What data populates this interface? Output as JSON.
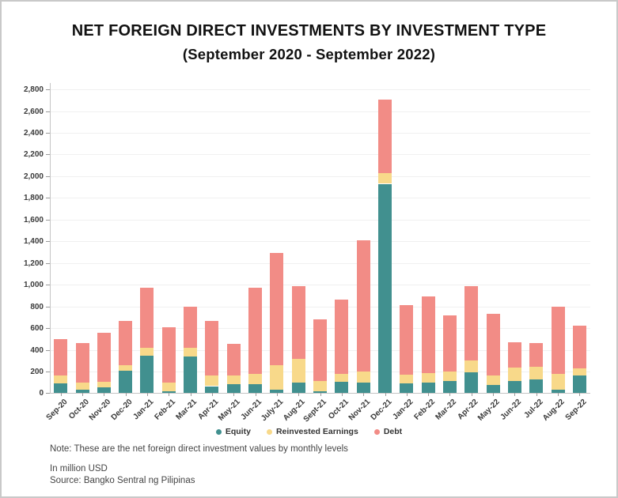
{
  "frame": {
    "title_line1": "NET FOREIGN DIRECT INVESTMENTS BY INVESTMENT TYPE",
    "title_line2": "(September 2020 - September 2022)"
  },
  "chart_data": {
    "type": "bar",
    "stacked": true,
    "title": "NET FOREIGN DIRECT INVESTMENTS BY INVESTMENT TYPE (September 2020 - September 2022)",
    "xlabel": "",
    "ylabel": "",
    "units": "million USD",
    "ylim": [
      0,
      2800
    ],
    "ytick_step": 200,
    "grid": true,
    "legend_position": "bottom",
    "categories": [
      "Sep-20",
      "Oct-20",
      "Nov-20",
      "Dec-20",
      "Jan-21",
      "Feb-21",
      "Mar-21",
      "Apr-21",
      "May-21",
      "Jun-21",
      "July-21",
      "Aug-21",
      "Sept-21",
      "Oct-21",
      "Nov-21",
      "Dec-21",
      "Jan-22",
      "Feb-22",
      "Mar-22",
      "Apr-22",
      "May-22",
      "Jun-22",
      "Jul-22",
      "Aug-22",
      "Sep-22"
    ],
    "series": [
      {
        "name": "Equity",
        "color": "#41908F",
        "values": [
          90,
          35,
          55,
          210,
          345,
          15,
          340,
          65,
          80,
          80,
          30,
          95,
          15,
          105,
          100,
          1930,
          90,
          100,
          110,
          190,
          75,
          110,
          130,
          30,
          165
        ]
      },
      {
        "name": "Reinvested Earnings",
        "color": "#F8D98A",
        "values": [
          70,
          60,
          50,
          50,
          75,
          80,
          75,
          95,
          85,
          100,
          230,
          220,
          95,
          70,
          100,
          100,
          80,
          85,
          90,
          110,
          90,
          125,
          115,
          145,
          65
        ]
      },
      {
        "name": "Debt",
        "color": "#F28C86",
        "values": [
          340,
          370,
          455,
          405,
          550,
          510,
          385,
          505,
          290,
          790,
          1035,
          670,
          570,
          685,
          1210,
          675,
          645,
          705,
          520,
          690,
          570,
          235,
          215,
          620,
          395
        ]
      }
    ]
  },
  "footer": {
    "note": "Note: These are the net foreign direct investment values by monthly levels",
    "units": "In million USD",
    "source": "Source: Bangko Sentral ng Pilipinas"
  },
  "colors": {
    "equity": "#41908F",
    "reinvested_earnings": "#F8D98A",
    "debt": "#F28C86",
    "gridline": "#F0F0F0",
    "axis": "#C4C4C4",
    "frame_border": "#C9C9C9"
  }
}
